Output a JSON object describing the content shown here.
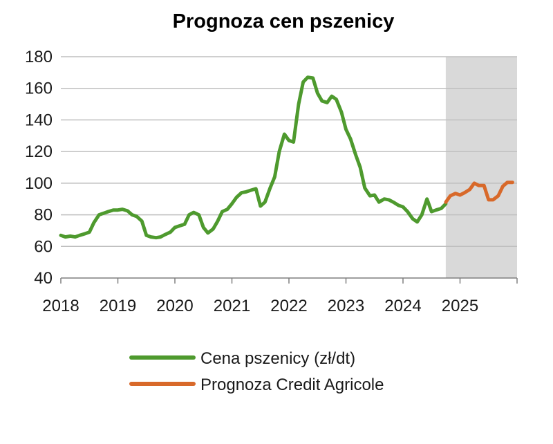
{
  "chart_data": {
    "type": "line",
    "title": "Prognoza cen pszenicy",
    "xlabel": "",
    "ylabel": "",
    "ylim": [
      40,
      180
    ],
    "yticks": [
      40,
      60,
      80,
      100,
      120,
      140,
      160,
      180
    ],
    "xlim": [
      2018,
      2026
    ],
    "xticks": [
      "2018",
      "2019",
      "2020",
      "2021",
      "2022",
      "2023",
      "2024",
      "2025"
    ],
    "grid": true,
    "legend_position": "bottom",
    "shaded_region": {
      "x_start": 2024.75,
      "x_end": 2026.0,
      "color": "#d9d9d9"
    },
    "series": [
      {
        "name": "Cena pszenicy (zł/dt)",
        "color": "#4e9a2e",
        "points": [
          [
            2018.0,
            67
          ],
          [
            2018.08,
            66
          ],
          [
            2018.17,
            66.5
          ],
          [
            2018.25,
            66
          ],
          [
            2018.33,
            67
          ],
          [
            2018.42,
            68
          ],
          [
            2018.5,
            69
          ],
          [
            2018.58,
            75
          ],
          [
            2018.67,
            80
          ],
          [
            2018.75,
            81
          ],
          [
            2018.83,
            82
          ],
          [
            2018.92,
            83
          ],
          [
            2019.0,
            83
          ],
          [
            2019.08,
            83.5
          ],
          [
            2019.17,
            82.5
          ],
          [
            2019.25,
            80
          ],
          [
            2019.33,
            79
          ],
          [
            2019.42,
            76
          ],
          [
            2019.5,
            67
          ],
          [
            2019.58,
            66
          ],
          [
            2019.67,
            65.5
          ],
          [
            2019.75,
            66
          ],
          [
            2019.83,
            67.5
          ],
          [
            2019.92,
            69
          ],
          [
            2020.0,
            72
          ],
          [
            2020.08,
            73
          ],
          [
            2020.17,
            74
          ],
          [
            2020.25,
            80
          ],
          [
            2020.33,
            81.5
          ],
          [
            2020.42,
            80
          ],
          [
            2020.5,
            72
          ],
          [
            2020.58,
            68.5
          ],
          [
            2020.67,
            71
          ],
          [
            2020.75,
            76
          ],
          [
            2020.83,
            82
          ],
          [
            2020.92,
            83.5
          ],
          [
            2021.0,
            87
          ],
          [
            2021.08,
            91
          ],
          [
            2021.17,
            94
          ],
          [
            2021.25,
            94.5
          ],
          [
            2021.33,
            95.5
          ],
          [
            2021.42,
            96.5
          ],
          [
            2021.5,
            85.5
          ],
          [
            2021.58,
            88
          ],
          [
            2021.67,
            97
          ],
          [
            2021.75,
            104
          ],
          [
            2021.83,
            120
          ],
          [
            2021.92,
            131
          ],
          [
            2022.0,
            127
          ],
          [
            2022.08,
            126
          ],
          [
            2022.17,
            150
          ],
          [
            2022.25,
            164
          ],
          [
            2022.33,
            167
          ],
          [
            2022.42,
            166.5
          ],
          [
            2022.5,
            157
          ],
          [
            2022.58,
            152
          ],
          [
            2022.67,
            151
          ],
          [
            2022.75,
            155
          ],
          [
            2022.83,
            153
          ],
          [
            2022.92,
            145
          ],
          [
            2023.0,
            134
          ],
          [
            2023.08,
            128
          ],
          [
            2023.17,
            118
          ],
          [
            2023.25,
            110
          ],
          [
            2023.33,
            97
          ],
          [
            2023.42,
            92
          ],
          [
            2023.5,
            92.5
          ],
          [
            2023.58,
            88
          ],
          [
            2023.67,
            90
          ],
          [
            2023.75,
            89.5
          ],
          [
            2023.83,
            88
          ],
          [
            2023.92,
            86
          ],
          [
            2024.0,
            85
          ],
          [
            2024.08,
            82
          ],
          [
            2024.17,
            77.5
          ],
          [
            2024.25,
            75.5
          ],
          [
            2024.33,
            80
          ],
          [
            2024.42,
            90
          ],
          [
            2024.5,
            82
          ],
          [
            2024.58,
            83
          ],
          [
            2024.67,
            84
          ],
          [
            2024.75,
            87
          ]
        ]
      },
      {
        "name": "Prognoza Credit Agricole",
        "color": "#d8692a",
        "points": [
          [
            2024.75,
            88
          ],
          [
            2024.83,
            92
          ],
          [
            2024.92,
            93.5
          ],
          [
            2025.0,
            92.5
          ],
          [
            2025.08,
            94
          ],
          [
            2025.17,
            96
          ],
          [
            2025.25,
            100
          ],
          [
            2025.33,
            98.5
          ],
          [
            2025.42,
            98.5
          ],
          [
            2025.5,
            89.5
          ],
          [
            2025.58,
            89.5
          ],
          [
            2025.67,
            92
          ],
          [
            2025.75,
            98
          ],
          [
            2025.83,
            100.5
          ],
          [
            2025.92,
            100.5
          ]
        ]
      }
    ]
  }
}
